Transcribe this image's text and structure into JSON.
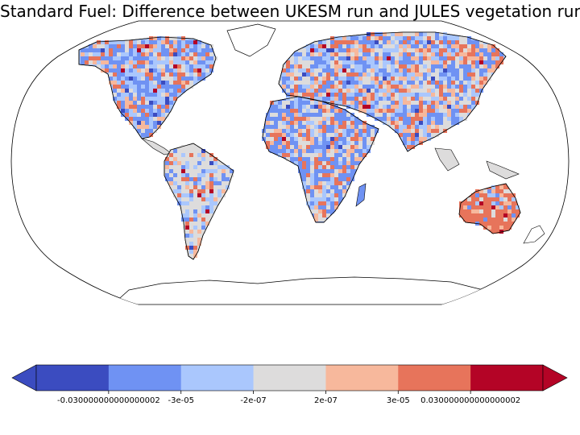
{
  "title": "Standard Fuel: Difference between UKESM run and JULES vegetation run",
  "map": {
    "projection": "Robinson",
    "coastlines": true,
    "ocean_color": "#ffffff"
  },
  "colorbar": {
    "orientation": "horizontal",
    "extend": "both",
    "colormap": "coolwarm",
    "segment_colors": [
      "#3b4cc0",
      "#6f92f3",
      "#aac7fd",
      "#dddcdc",
      "#f7b89c",
      "#e7745b",
      "#b40426"
    ],
    "tick_labels": [
      "-0.030000000000000002",
      "-3e-05",
      "-2e-07",
      "2e-07",
      "3e-05",
      "0.030000000000000002"
    ]
  }
}
